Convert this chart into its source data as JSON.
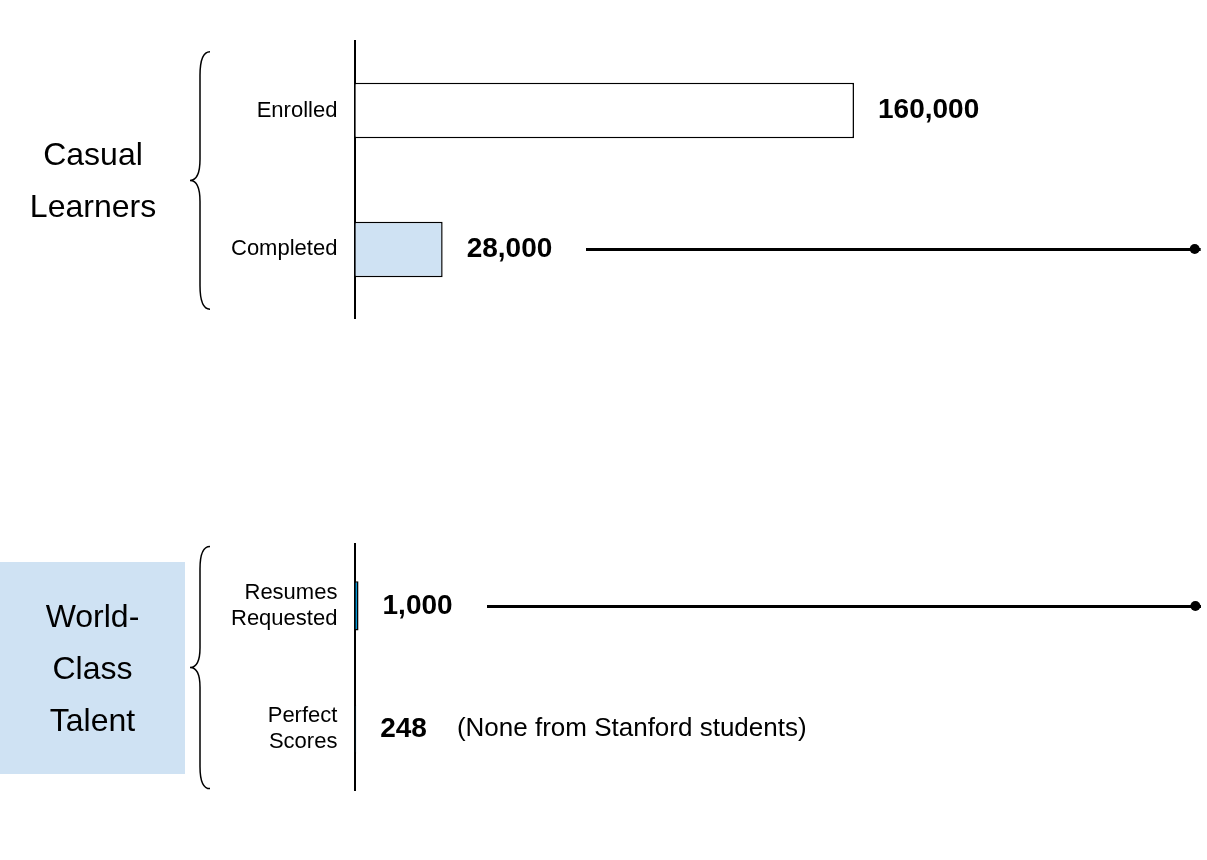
{
  "chart_data": [
    {
      "type": "bar",
      "orientation": "horizontal",
      "ylabel": "Casual Learners",
      "categories": [
        "Enrolled",
        "Completed"
      ],
      "values": [
        160000,
        28000
      ],
      "colors": [
        "#ffffff",
        "#cfe2f3"
      ],
      "value_labels": [
        "160,000",
        "28,000"
      ],
      "legend": false
    },
    {
      "type": "bar",
      "orientation": "horizontal",
      "ylabel": "World-Class Talent",
      "categories": [
        "Resumes Requested",
        "Perfect Scores"
      ],
      "values": [
        1000,
        248
      ],
      "colors": [
        "#0095d3",
        "#0d4a6b"
      ],
      "value_labels": [
        "1,000",
        "248"
      ],
      "annotations": [
        "(None from Stanford students)"
      ],
      "legend": false
    }
  ]
}
